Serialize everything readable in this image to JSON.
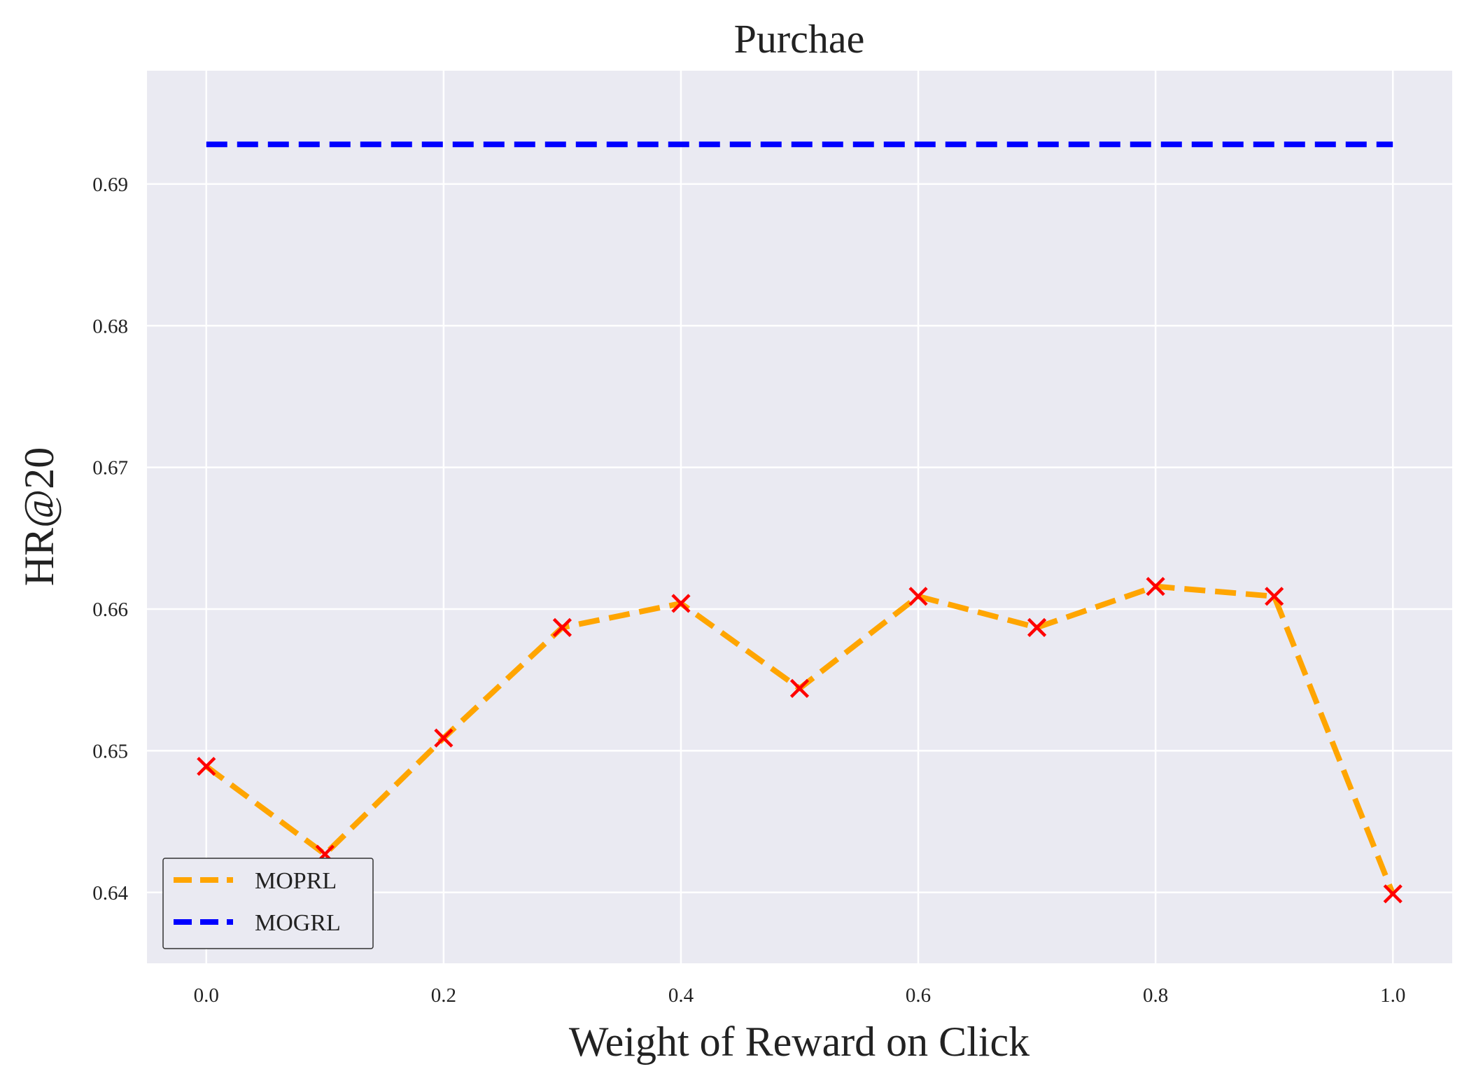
{
  "chart_data": {
    "type": "line",
    "title": "Purchae",
    "xlabel": "Weight of Reward on Click",
    "ylabel": "HR@20",
    "xlim": [
      -0.05,
      1.05
    ],
    "ylim": [
      0.635,
      0.698
    ],
    "xticks": [
      0.0,
      0.2,
      0.4,
      0.6,
      0.8,
      1.0
    ],
    "xtick_labels": [
      "0.0",
      "0.2",
      "0.4",
      "0.6",
      "0.8",
      "1.0"
    ],
    "yticks": [
      0.64,
      0.65,
      0.66,
      0.67,
      0.68,
      0.69
    ],
    "ytick_labels": [
      "0.64",
      "0.65",
      "0.66",
      "0.67",
      "0.68",
      "0.69"
    ],
    "grid": true,
    "legend_position": "lower-left",
    "background": "#EAEAF2",
    "series": [
      {
        "name": "MOPRL",
        "color": "#FFA500",
        "style": "dashed",
        "marker": "x",
        "marker_color": "#FF0000",
        "x": [
          0.0,
          0.1,
          0.2,
          0.3,
          0.4,
          0.5,
          0.6,
          0.7,
          0.8,
          0.9,
          1.0
        ],
        "y": [
          0.6489,
          0.6427,
          0.6509,
          0.6587,
          0.6604,
          0.6544,
          0.6609,
          0.6587,
          0.6616,
          0.6609,
          0.6399
        ]
      },
      {
        "name": "MOGRL",
        "color": "#0000FF",
        "style": "dashed",
        "marker": "",
        "x": [
          0.0,
          1.0
        ],
        "y": [
          0.6928,
          0.6928
        ]
      }
    ]
  }
}
